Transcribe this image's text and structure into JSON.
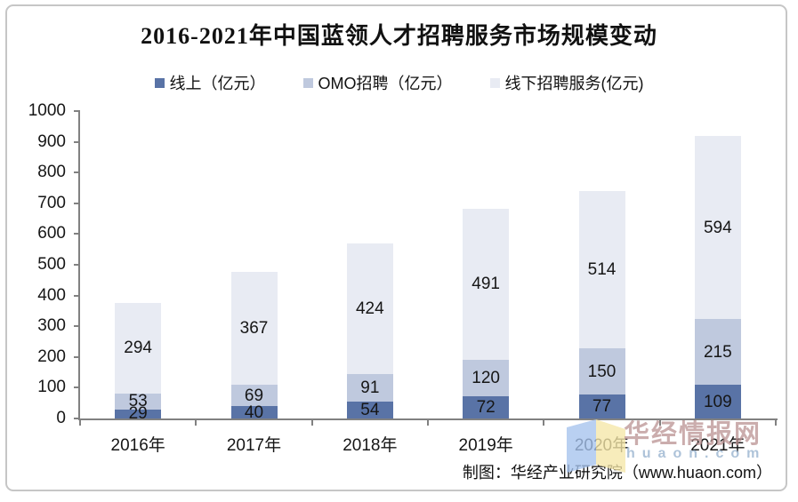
{
  "page": {
    "title": "2016-2021年中国蓝领人才招聘服务市场规模变动",
    "source_note": "制图：华经产业研究院（www.huaon.com）"
  },
  "legend": {
    "items": [
      {
        "label": "线上（亿元）",
        "color": "#5973a6"
      },
      {
        "label": "OMO招聘（亿元）",
        "color": "#bfc9de"
      },
      {
        "label": "线下招聘服务(亿元)",
        "color": "#e8ebf3"
      }
    ]
  },
  "chart_data": {
    "type": "bar",
    "stacked": true,
    "title": "2016-2021年中国蓝领人才招聘服务市场规模变动",
    "categories": [
      "2016年",
      "2017年",
      "2018年",
      "2019年",
      "2020年",
      "2021年"
    ],
    "series": [
      {
        "name": "线上（亿元）",
        "color": "#5973a6",
        "values": [
          29,
          40,
          54,
          72,
          77,
          109
        ]
      },
      {
        "name": "OMO招聘（亿元）",
        "color": "#bfc9de",
        "values": [
          53,
          69,
          91,
          120,
          150,
          215
        ]
      },
      {
        "name": "线下招聘服务(亿元)",
        "color": "#e8ebf3",
        "values": [
          294,
          367,
          424,
          491,
          514,
          594
        ]
      }
    ],
    "totals": [
      376,
      476,
      569,
      683,
      741,
      918
    ],
    "xlabel": "",
    "ylabel": "",
    "ylim": [
      0,
      1000
    ],
    "yticks": [
      0,
      100,
      200,
      300,
      400,
      500,
      600,
      700,
      800,
      900,
      1000
    ],
    "grid": false,
    "legend_position": "top",
    "data_labels": true
  },
  "watermark": {
    "brand_text": "华经情报网",
    "domain_text": "huaon.com",
    "brand_color": "rgba(185,146,146,0.75)",
    "domain_color": "rgba(160,185,210,0.85)",
    "logo_blue": "#a6c3ee",
    "logo_yellow": "#f5e7a9"
  },
  "colors": {
    "axis": "#818181",
    "label_text": "#161616",
    "border": "#c6c6c6"
  }
}
